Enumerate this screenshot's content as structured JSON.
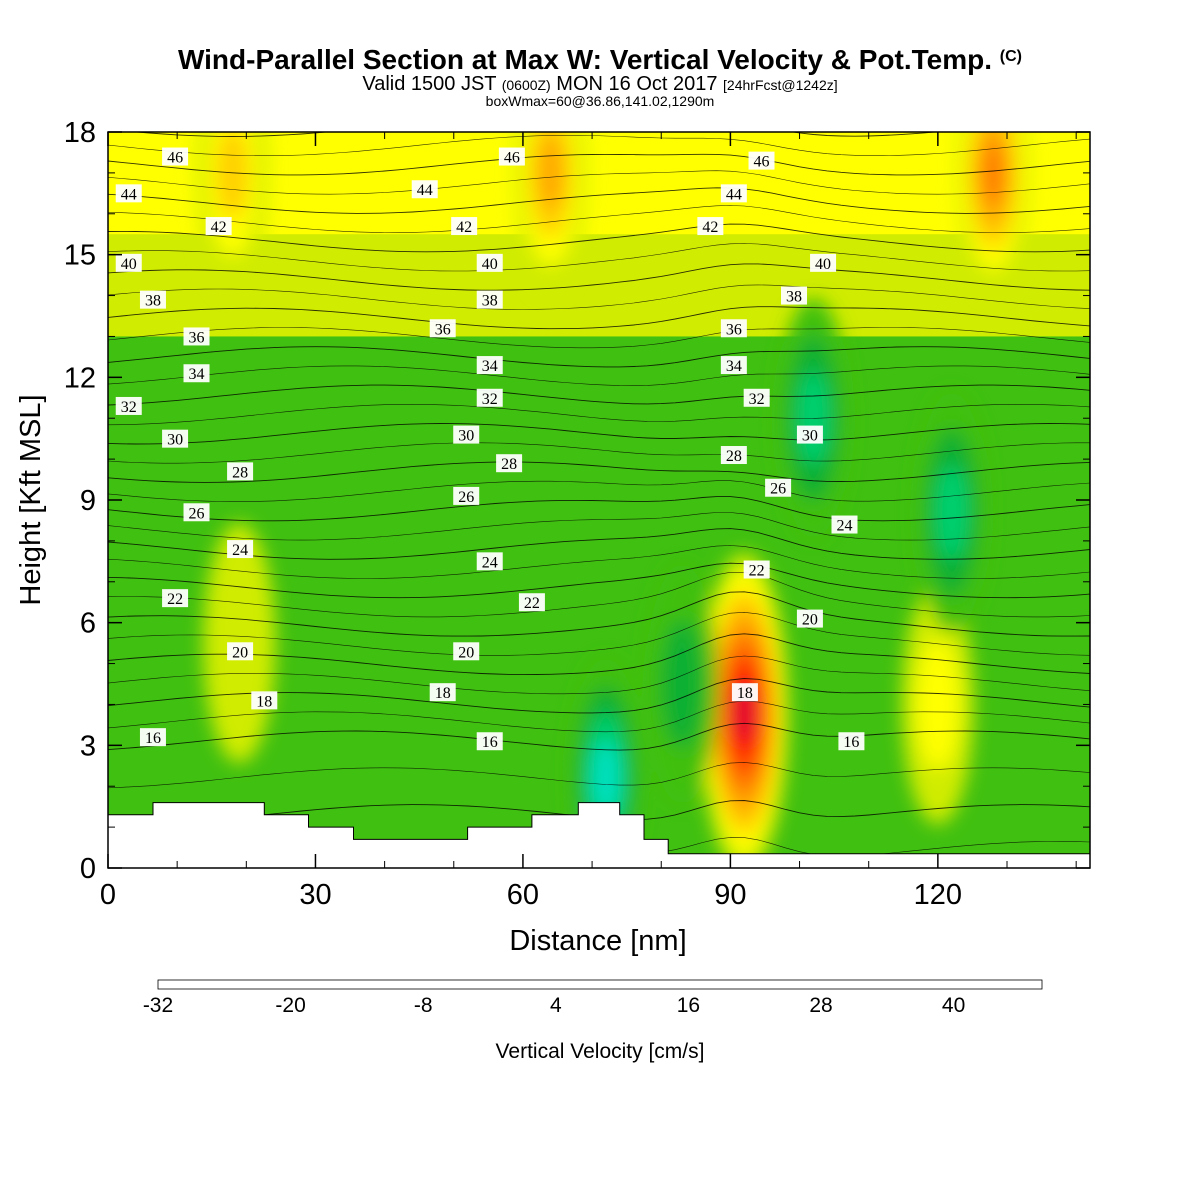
{
  "title": {
    "main": "Wind-Parallel Section at Max W: Vertical Velocity & Pot.Temp.",
    "copyright": "(C)",
    "valid_prefix": "Valid 1500 JST",
    "valid_utc": "(0600Z)",
    "valid_date": "MON 16 Oct 2017",
    "forecast": "[24hrFcst@1242z]",
    "box": "boxWmax=60@36.86,141.02,1290m"
  },
  "chart_data": {
    "type": "heatmap",
    "xlabel": "Distance [nm]",
    "ylabel": "Height [Kft MSL]",
    "xlim": [
      0,
      142
    ],
    "ylim": [
      0,
      18
    ],
    "x_ticks": [
      "0",
      "30",
      "60",
      "90",
      "120"
    ],
    "y_ticks": [
      "0",
      "3",
      "6",
      "9",
      "12",
      "15",
      "18"
    ],
    "colorbar": {
      "label": "Vertical Velocity [cm/s]",
      "min": -32,
      "step": 4,
      "tick_labels": [
        "-32",
        "-20",
        "-8",
        "4",
        "16",
        "28",
        "40"
      ],
      "colors": [
        "#0000ee",
        "#0044ff",
        "#0099ff",
        "#00eeff",
        "#00e0c0",
        "#00d070",
        "#10b030",
        "#40c010",
        "#88d800",
        "#d0ec00",
        "#ffff00",
        "#ffd000",
        "#ffaa00",
        "#ff8000",
        "#ff5000",
        "#ff1000",
        "#e00030",
        "#b00050",
        "#800060",
        "#500090"
      ]
    },
    "vertical_velocity_features": [
      {
        "x": 92,
        "y": 3.8,
        "peak": 48,
        "note": "strong updraft core"
      },
      {
        "x": 64,
        "y": 17,
        "peak": 16
      },
      {
        "x": 128,
        "y": 17,
        "peak": 20
      },
      {
        "x": 18,
        "y": 17,
        "peak": 12
      },
      {
        "x": 120,
        "y": 4,
        "peak": 8
      },
      {
        "x": 19,
        "y": 5.5,
        "peak": 5
      },
      {
        "x": 102,
        "y": 11,
        "peak": -12
      },
      {
        "x": 122,
        "y": 8.7,
        "peak": -12
      },
      {
        "x": 72,
        "y": 2.2,
        "peak": -14
      },
      {
        "x": 83,
        "y": 4.5,
        "peak": -8
      }
    ],
    "potential_temperature_labels": [
      {
        "text": "46",
        "x": 9.7,
        "y": 17.4
      },
      {
        "text": "46",
        "x": 58.4,
        "y": 17.4
      },
      {
        "text": "46",
        "x": 94.5,
        "y": 17.3
      },
      {
        "text": "44",
        "x": 3,
        "y": 16.5
      },
      {
        "text": "44",
        "x": 45.8,
        "y": 16.6
      },
      {
        "text": "44",
        "x": 90.5,
        "y": 16.5
      },
      {
        "text": "42",
        "x": 16,
        "y": 15.7
      },
      {
        "text": "42",
        "x": 51.5,
        "y": 15.7
      },
      {
        "text": "42",
        "x": 87.1,
        "y": 15.7
      },
      {
        "text": "40",
        "x": 3,
        "y": 14.8
      },
      {
        "text": "40",
        "x": 55.2,
        "y": 14.8
      },
      {
        "text": "40",
        "x": 103.4,
        "y": 14.8
      },
      {
        "text": "38",
        "x": 6.5,
        "y": 13.9
      },
      {
        "text": "38",
        "x": 55.2,
        "y": 13.9
      },
      {
        "text": "38",
        "x": 99.2,
        "y": 14
      },
      {
        "text": "36",
        "x": 12.8,
        "y": 13
      },
      {
        "text": "36",
        "x": 48.4,
        "y": 13.2
      },
      {
        "text": "36",
        "x": 90.5,
        "y": 13.2
      },
      {
        "text": "34",
        "x": 12.8,
        "y": 12.1
      },
      {
        "text": "34",
        "x": 55.2,
        "y": 12.3
      },
      {
        "text": "34",
        "x": 90.5,
        "y": 12.3
      },
      {
        "text": "32",
        "x": 3,
        "y": 11.3
      },
      {
        "text": "32",
        "x": 55.2,
        "y": 11.5
      },
      {
        "text": "32",
        "x": 93.8,
        "y": 11.5
      },
      {
        "text": "30",
        "x": 9.7,
        "y": 10.5
      },
      {
        "text": "30",
        "x": 51.8,
        "y": 10.6
      },
      {
        "text": "30",
        "x": 101.5,
        "y": 10.6
      },
      {
        "text": "28",
        "x": 19.1,
        "y": 9.7
      },
      {
        "text": "28",
        "x": 58,
        "y": 9.9
      },
      {
        "text": "28",
        "x": 90.5,
        "y": 10.1
      },
      {
        "text": "26",
        "x": 12.8,
        "y": 8.7
      },
      {
        "text": "26",
        "x": 51.8,
        "y": 9.1
      },
      {
        "text": "26",
        "x": 96.9,
        "y": 9.3
      },
      {
        "text": "24",
        "x": 19.1,
        "y": 7.8
      },
      {
        "text": "24",
        "x": 55.2,
        "y": 7.5
      },
      {
        "text": "24",
        "x": 106.5,
        "y": 8.4
      },
      {
        "text": "22",
        "x": 9.7,
        "y": 6.6
      },
      {
        "text": "22",
        "x": 61.3,
        "y": 6.5
      },
      {
        "text": "22",
        "x": 93.8,
        "y": 7.3
      },
      {
        "text": "20",
        "x": 19.1,
        "y": 5.3
      },
      {
        "text": "20",
        "x": 51.8,
        "y": 5.3
      },
      {
        "text": "20",
        "x": 101.5,
        "y": 6.1
      },
      {
        "text": "18",
        "x": 22.6,
        "y": 4.1
      },
      {
        "text": "18",
        "x": 48.4,
        "y": 4.3
      },
      {
        "text": "18",
        "x": 92.1,
        "y": 4.3
      },
      {
        "text": "16",
        "x": 6.5,
        "y": 3.2
      },
      {
        "text": "16",
        "x": 55.2,
        "y": 3.1
      },
      {
        "text": "16",
        "x": 107.5,
        "y": 3.1
      }
    ],
    "terrain": [
      [
        0,
        1.3
      ],
      [
        6.5,
        1.3
      ],
      [
        6.5,
        1.6
      ],
      [
        22.6,
        1.6
      ],
      [
        22.6,
        1.3
      ],
      [
        29,
        1.3
      ],
      [
        29,
        1
      ],
      [
        35.5,
        1
      ],
      [
        35.5,
        0.7
      ],
      [
        52,
        0.7
      ],
      [
        52,
        1
      ],
      [
        61.3,
        1
      ],
      [
        61.3,
        1.3
      ],
      [
        68,
        1.3
      ],
      [
        68,
        1.6
      ],
      [
        74,
        1.6
      ],
      [
        74,
        1.3
      ],
      [
        77.5,
        1.3
      ],
      [
        77.5,
        0.7
      ],
      [
        81,
        0.7
      ],
      [
        81,
        0.35
      ],
      [
        142,
        0.35
      ]
    ]
  }
}
